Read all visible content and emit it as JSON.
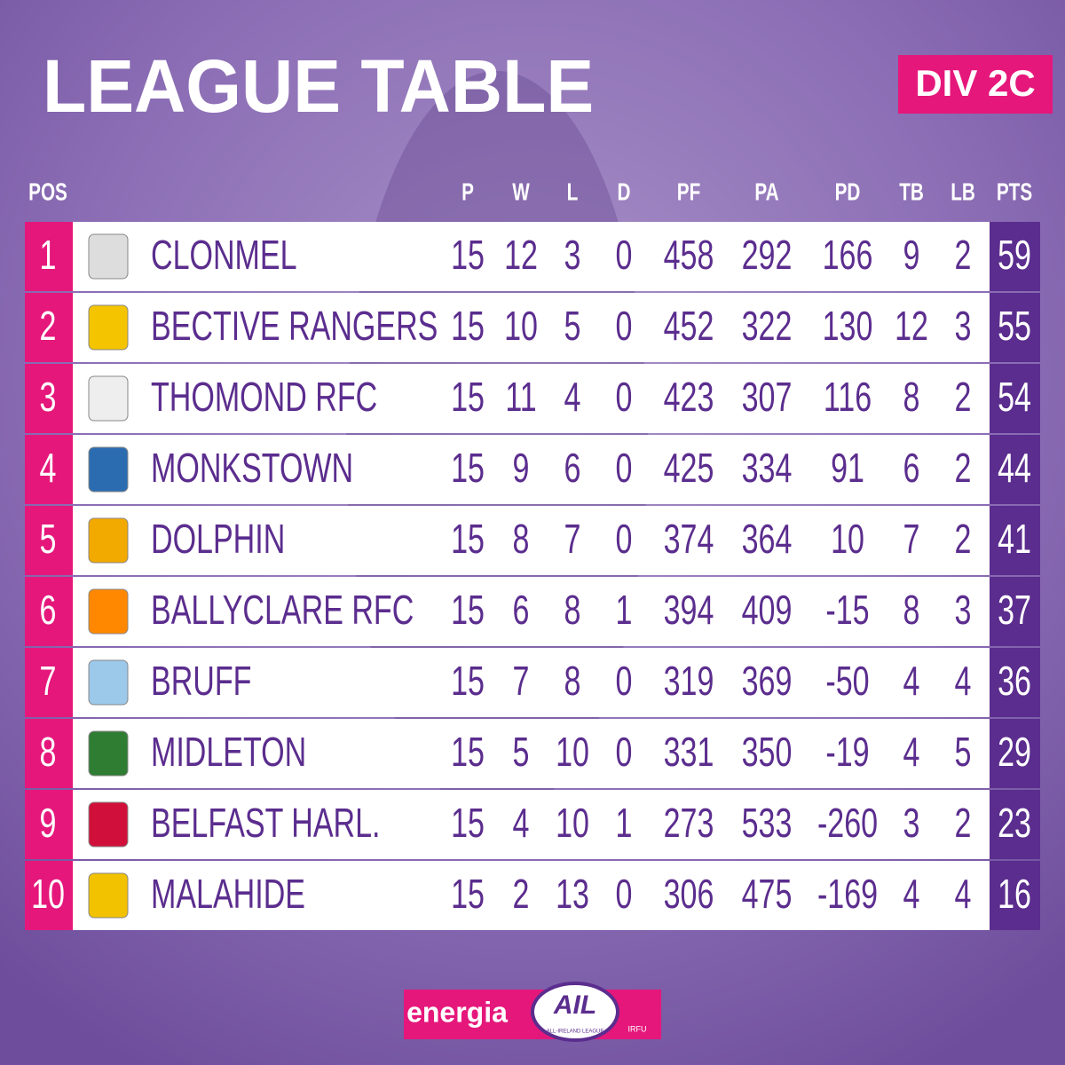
{
  "header": {
    "title": "LEAGUE TABLE",
    "division": "DIV 2C"
  },
  "table": {
    "columns": [
      "POS",
      "P",
      "W",
      "L",
      "D",
      "PF",
      "PA",
      "PD",
      "TB",
      "LB",
      "PTS"
    ],
    "rows": [
      [
        1,
        "CLONMEL",
        15,
        12,
        3,
        0,
        458,
        292,
        166,
        9,
        2,
        59
      ],
      [
        2,
        "BECTIVE RANGERS",
        15,
        10,
        5,
        0,
        452,
        322,
        130,
        12,
        3,
        55
      ],
      [
        3,
        "THOMOND RFC",
        15,
        11,
        4,
        0,
        423,
        307,
        116,
        8,
        2,
        54
      ],
      [
        4,
        "MONKSTOWN",
        15,
        9,
        6,
        0,
        425,
        334,
        91,
        6,
        2,
        44
      ],
      [
        5,
        "DOLPHIN",
        15,
        8,
        7,
        0,
        374,
        364,
        10,
        7,
        2,
        41
      ],
      [
        6,
        "BALLYCLARE RFC",
        15,
        6,
        8,
        1,
        394,
        409,
        -15,
        8,
        3,
        37
      ],
      [
        7,
        "BRUFF",
        15,
        7,
        8,
        0,
        319,
        369,
        -50,
        4,
        4,
        36
      ],
      [
        8,
        "MIDLETON",
        15,
        5,
        10,
        0,
        331,
        350,
        -19,
        4,
        5,
        29
      ],
      [
        9,
        "BELFAST HARL.",
        15,
        4,
        10,
        1,
        273,
        533,
        -260,
        3,
        2,
        23
      ],
      [
        10,
        "MALAHIDE",
        15,
        2,
        13,
        0,
        306,
        475,
        -169,
        4,
        4,
        16
      ]
    ]
  },
  "footer": {
    "sponsor": "energia",
    "league": "AIL",
    "league_full": "ALL-IRELAND LEAGUE",
    "union": "IRFU"
  }
}
